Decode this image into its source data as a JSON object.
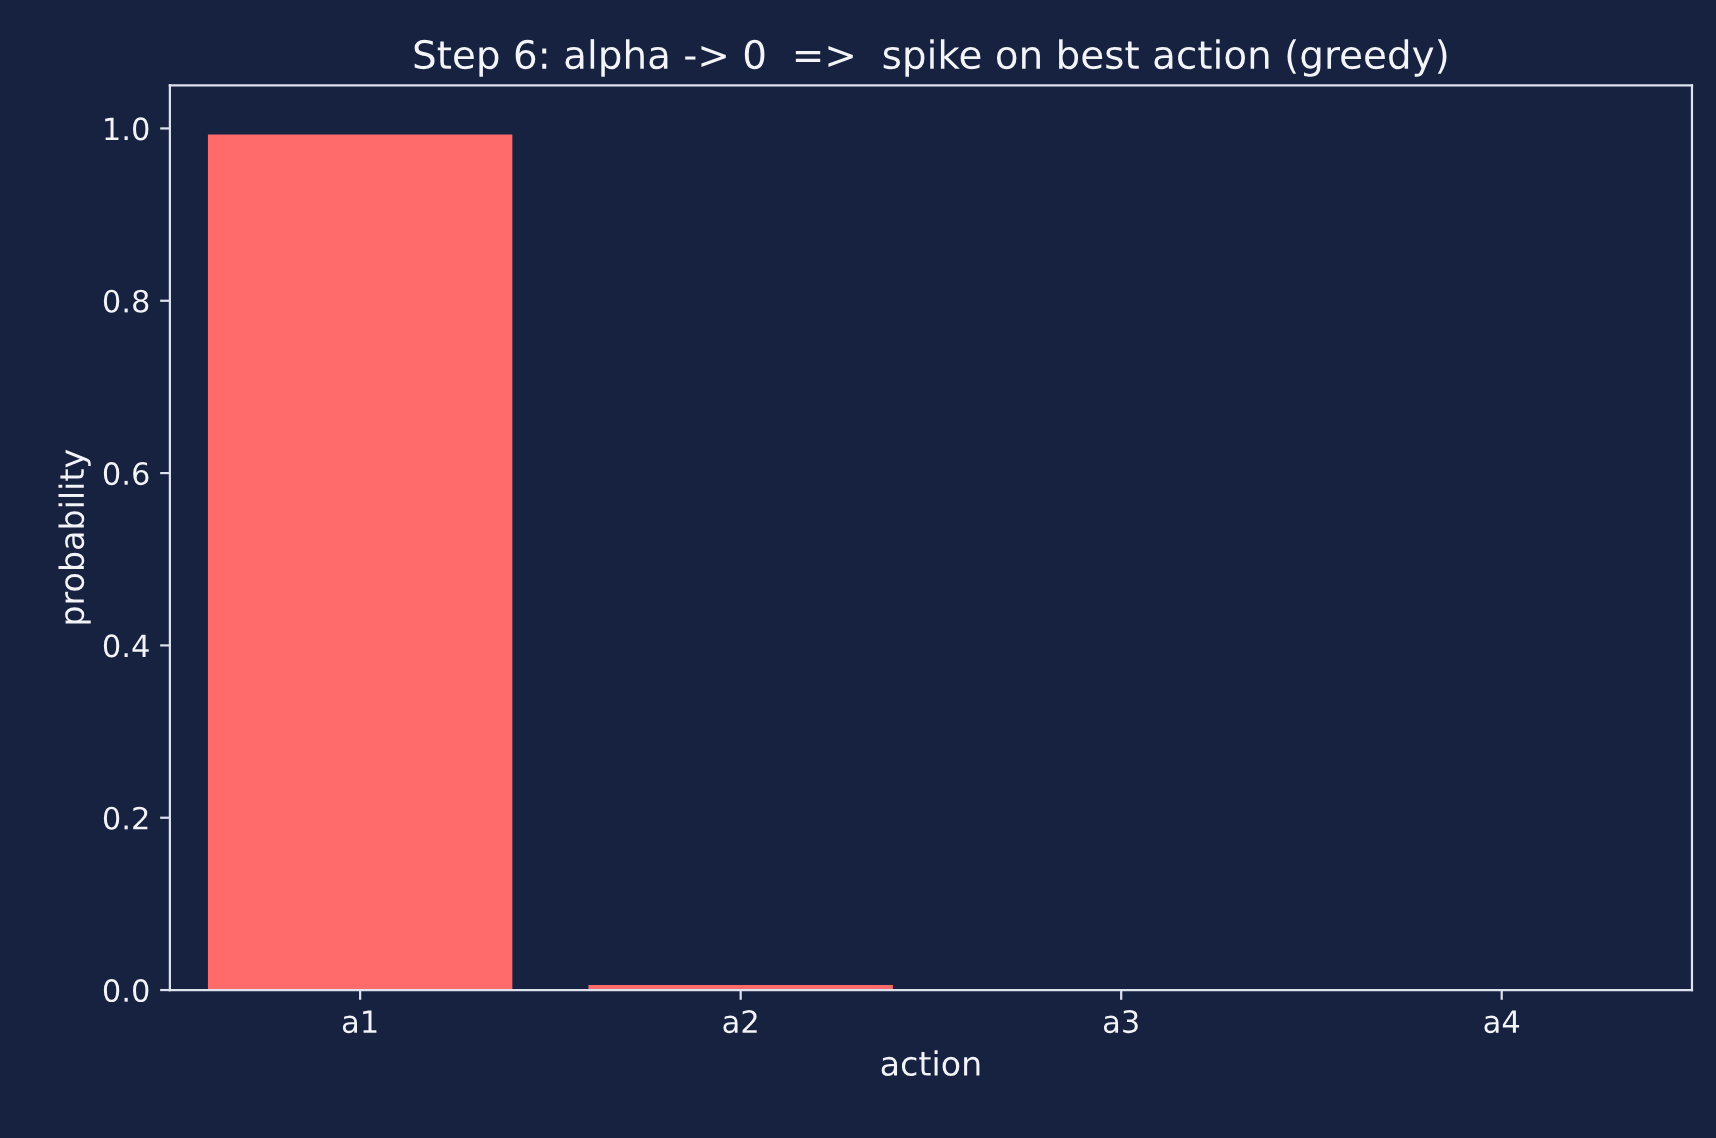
{
  "chart_data": {
    "type": "bar",
    "title": "Step 6: alpha -> 0  =>  spike on best action (greedy)",
    "xlabel": "action",
    "ylabel": "probability",
    "categories": [
      "a1",
      "a2",
      "a3",
      "a4"
    ],
    "values": [
      0.993,
      0.006,
      0.0,
      0.0
    ],
    "color": "#ff6b6b",
    "ylim": [
      0,
      1.05
    ],
    "yticks": [
      {
        "value": 0,
        "label": "0.0"
      },
      0.2,
      0.4,
      0.6,
      0.8,
      {
        "value": 1,
        "label": "1.0"
      }
    ],
    "grid": false
  }
}
